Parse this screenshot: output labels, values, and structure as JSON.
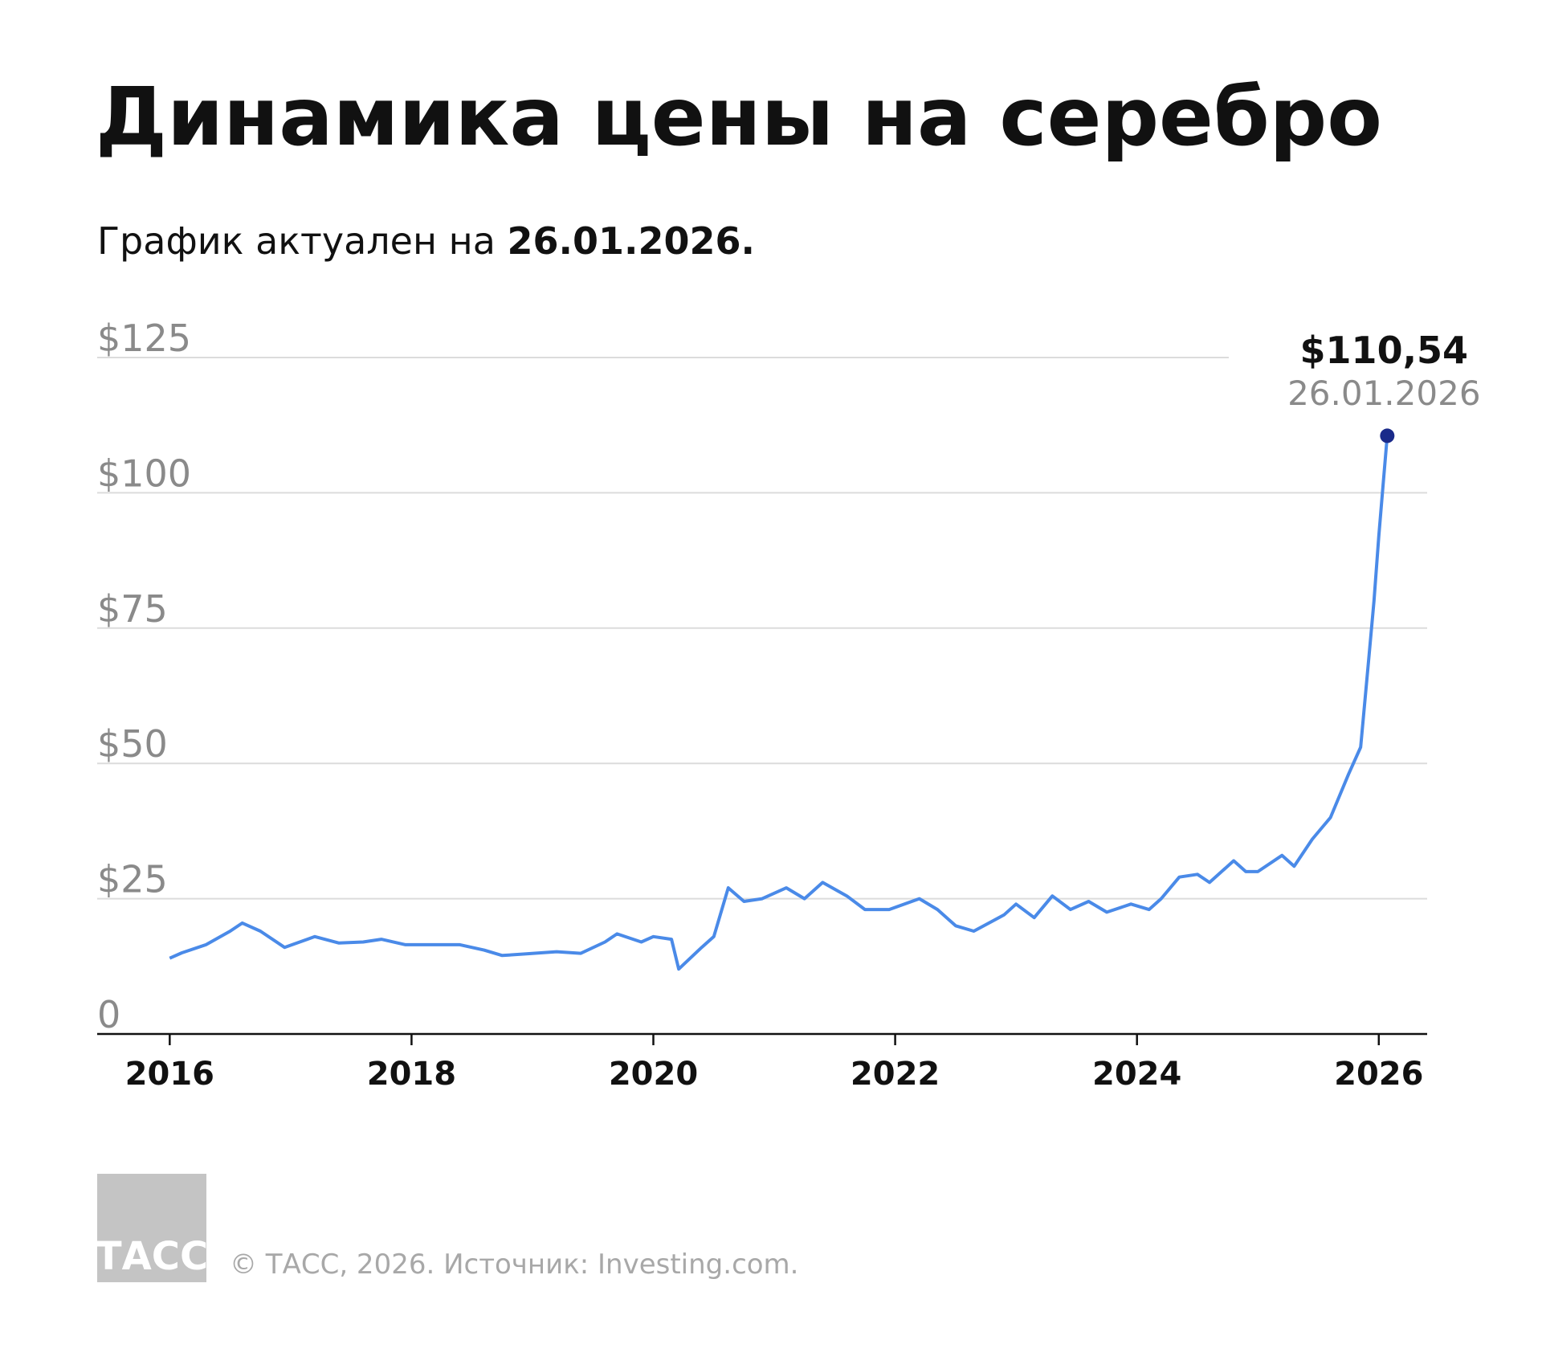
{
  "chart_data": {
    "type": "line",
    "title": "Динамика цены на серебро",
    "subtitle": {
      "text": "График актуален на",
      "date": "26.01.2026."
    },
    "x": [
      2016.0,
      2016.1,
      2016.3,
      2016.5,
      2016.6,
      2016.75,
      2016.95,
      2017.2,
      2017.4,
      2017.6,
      2017.75,
      2017.95,
      2018.2,
      2018.4,
      2018.6,
      2018.75,
      2018.95,
      2019.2,
      2019.4,
      2019.6,
      2019.7,
      2019.9,
      2020.0,
      2020.15,
      2020.21,
      2020.4,
      2020.5,
      2020.58,
      2020.62,
      2020.75,
      2020.9,
      2021.1,
      2021.25,
      2021.4,
      2021.6,
      2021.75,
      2021.95,
      2022.2,
      2022.35,
      2022.5,
      2022.65,
      2022.9,
      2023.0,
      2023.15,
      2023.3,
      2023.45,
      2023.6,
      2023.75,
      2023.95,
      2024.1,
      2024.2,
      2024.35,
      2024.5,
      2024.6,
      2024.8,
      2024.9,
      2025.0,
      2025.2,
      2025.3,
      2025.45,
      2025.6,
      2025.75,
      2025.85,
      2025.92,
      2025.96,
      2026.0,
      2026.03,
      2026.07
    ],
    "series": [
      {
        "name": "Серебро",
        "color": "#4a8ae8",
        "values": [
          14,
          15,
          16.5,
          19,
          20.5,
          19,
          16,
          18,
          16.8,
          17,
          17.5,
          16.5,
          16.5,
          16.5,
          15.5,
          14.5,
          14.8,
          15.2,
          14.9,
          17,
          18.5,
          17,
          18,
          17.5,
          12,
          16,
          18,
          24,
          27,
          24.5,
          25,
          27,
          25,
          28,
          25.5,
          23,
          23,
          25,
          23,
          20,
          19,
          22,
          24,
          21.5,
          25.5,
          23,
          24.5,
          22.5,
          24,
          23,
          25,
          29,
          29.5,
          28,
          32,
          30,
          30,
          33,
          31,
          36,
          40,
          48,
          53,
          70,
          80,
          92,
          100,
          110.54
        ]
      }
    ],
    "annotation": {
      "label": "$110,54",
      "date": "26.01.2026"
    },
    "xlim": [
      2015.4,
      2026.4
    ],
    "xticks": [
      2016,
      2018,
      2020,
      2022,
      2024,
      2026
    ],
    "ylim": [
      0,
      125
    ],
    "yticks": [
      0,
      {
        "value": 25,
        "label": "$25"
      },
      {
        "value": 50,
        "label": "$50"
      },
      {
        "value": 75,
        "label": "$75"
      },
      {
        "value": 100,
        "label": "$100"
      },
      {
        "value": 125,
        "label": "$125"
      }
    ],
    "grid": true,
    "point_color": "#1a2a8a"
  },
  "footer": {
    "logo": "ТАСС",
    "source": "© ТАСС, 2026. Источник: Investing.com."
  }
}
